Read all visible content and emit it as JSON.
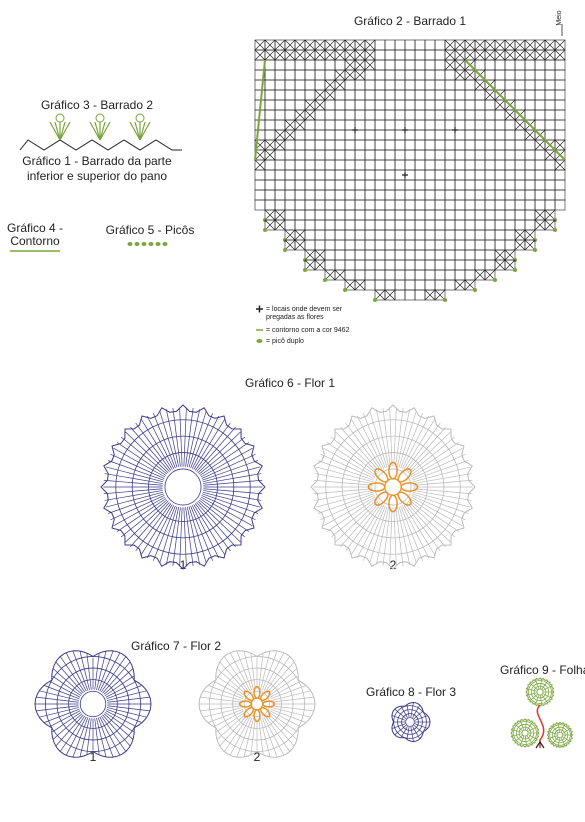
{
  "graphics": {
    "chart2": {
      "title": "Gráfico 2 - Barrado 1",
      "center_label": "Meio"
    },
    "chart3": {
      "title": "Gráfico 3 - Barrado 2"
    },
    "chart1": {
      "title_lines": [
        "Gráfico 1 - Barrado da parte",
        "inferior e superior do pano"
      ]
    },
    "chart4": {
      "title_lines": [
        "Gráfico 4 -",
        "Contorno"
      ]
    },
    "chart5": {
      "title": "Gráfico 5 - Picôs"
    },
    "legend": [
      {
        "text_lines": [
          "= locais onde devem ser",
          "pregadas as flores"
        ]
      },
      {
        "text_lines": [
          "= contorno com a cor 9462"
        ]
      },
      {
        "text_lines": [
          "= picô duplo"
        ]
      }
    ],
    "chart6": {
      "title": "Gráfico 6 - Flor 1",
      "labels": [
        "1",
        "2"
      ]
    },
    "chart7": {
      "title": "Gráfico 7 - Flor 2",
      "labels": [
        "1",
        "2"
      ]
    },
    "chart8": {
      "title": "Gráfico 8 - Flor 3"
    },
    "chart9": {
      "title": "Gráfico 9 - Folha"
    }
  }
}
